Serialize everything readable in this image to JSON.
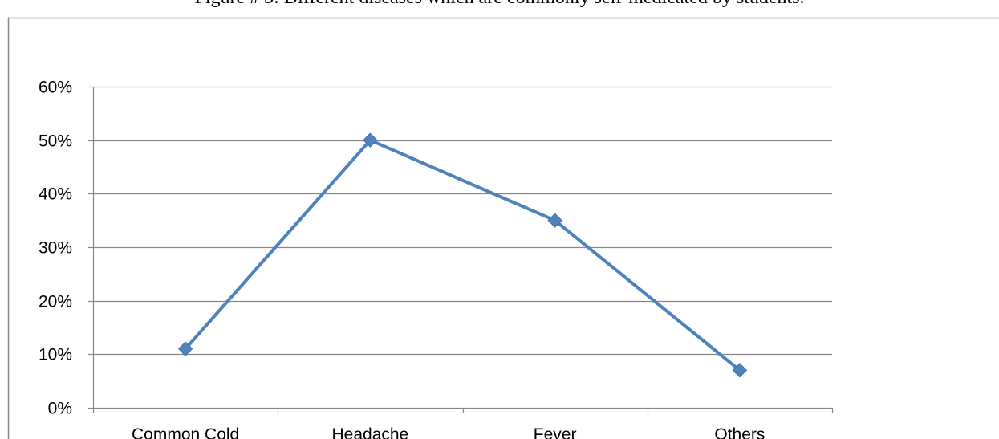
{
  "figure": {
    "caption": "Figure # 3:  Different diseases which are commonly self-medicated by students."
  },
  "chart_data": {
    "type": "line",
    "categories": [
      "Common Cold",
      "Headache",
      "Fever",
      "Others"
    ],
    "series": [
      {
        "values": [
          0.11,
          0.5,
          0.35,
          0.07
        ]
      }
    ],
    "y_ticks": [
      "0%",
      "10%",
      "20%",
      "30%",
      "40%",
      "50%",
      "60%"
    ],
    "ylim": [
      0,
      0.6
    ],
    "grid": true,
    "legend": "none",
    "line_color": "#4f81bd",
    "marker": "diamond"
  }
}
